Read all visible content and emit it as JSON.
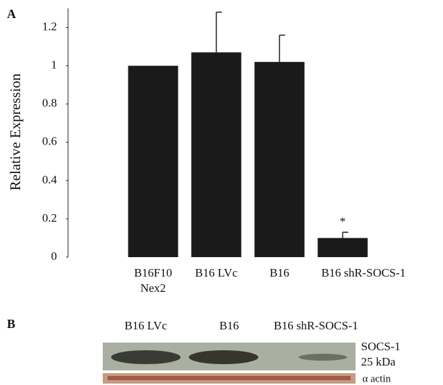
{
  "chart_data": {
    "type": "bar",
    "panel_label": "A",
    "y_label": "Relative Expression",
    "categories": [
      "B16F10\nNex2",
      "B16 LVc",
      "B16",
      "B16 shR-SOCS-1"
    ],
    "values": [
      1.0,
      1.07,
      1.02,
      0.1
    ],
    "errors": [
      null,
      0.21,
      0.14,
      0.03
    ],
    "annotations": [
      null,
      null,
      null,
      "*"
    ],
    "color": "#1a1a1a",
    "ylim": [
      0,
      1.3
    ],
    "yticks": [
      0,
      0.2,
      0.4,
      0.6,
      0.8,
      1,
      1.2
    ],
    "grid": false
  },
  "blot": {
    "panel_label": "B",
    "lanes": [
      "B16 LVc",
      "B16",
      "B16 shR-SOCS-1"
    ],
    "row_labels": [
      "SOCS-1",
      "25 kDa",
      "α actin"
    ]
  }
}
